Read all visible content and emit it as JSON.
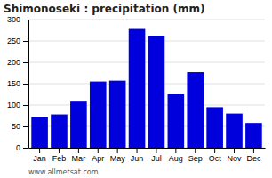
{
  "chart_data": {
    "type": "bar",
    "title": "Shimonoseki : precipitation (mm)",
    "categories": [
      "Jan",
      "Feb",
      "Mar",
      "Apr",
      "May",
      "Jun",
      "Jul",
      "Aug",
      "Sep",
      "Oct",
      "Nov",
      "Dec"
    ],
    "values": [
      72,
      78,
      108,
      155,
      157,
      278,
      262,
      125,
      177,
      95,
      80,
      58
    ],
    "color": "#0000dd",
    "ylim": [
      0,
      300
    ],
    "yticks": [
      0,
      50,
      100,
      150,
      200,
      250,
      300
    ],
    "grid": true,
    "annotations": [
      "www.allmetsat.com"
    ]
  }
}
